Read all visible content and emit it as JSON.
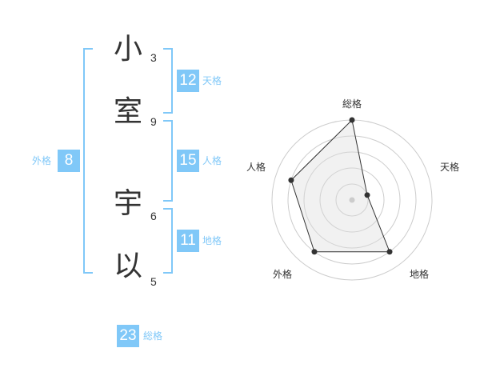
{
  "name": {
    "chars": [
      {
        "char": "小",
        "strokes": "3"
      },
      {
        "char": "室",
        "strokes": "9"
      },
      {
        "char": "宇",
        "strokes": "6"
      },
      {
        "char": "以",
        "strokes": "5"
      }
    ]
  },
  "fortunes": {
    "tenkaku": {
      "label": "天格",
      "value": "12"
    },
    "jinkaku": {
      "label": "人格",
      "value": "15"
    },
    "chikaku": {
      "label": "地格",
      "value": "11"
    },
    "gaikaku": {
      "label": "外格",
      "value": "8"
    },
    "soukaku": {
      "label": "総格",
      "value": "23"
    }
  },
  "colors": {
    "accent": "#80c8f8",
    "text": "#333333"
  },
  "chart_data": {
    "type": "radar",
    "categories": [
      "総格",
      "天格",
      "地格",
      "外格",
      "人格"
    ],
    "values": [
      5,
      1,
      4,
      4,
      4
    ],
    "range": [
      0,
      5
    ],
    "rings": 5
  }
}
